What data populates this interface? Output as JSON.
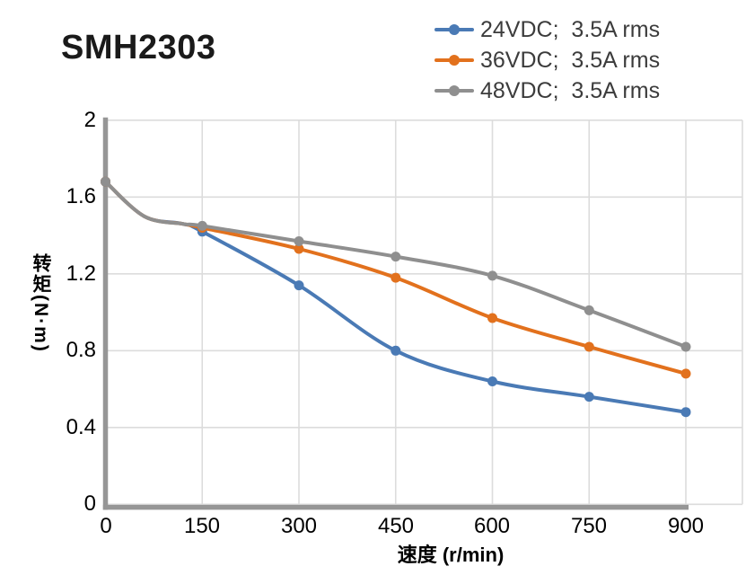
{
  "chart_data": {
    "type": "line",
    "title": "SMH2303",
    "xlabel": "速度 (r/min)",
    "ylabel": "转矩(N·m)",
    "x": [
      0,
      150,
      300,
      450,
      600,
      750,
      900
    ],
    "x_ticks": [
      "0",
      "150",
      "300",
      "450",
      "600",
      "750",
      "900"
    ],
    "y_ticks": [
      "2",
      "1.6",
      "1.2",
      "0.8",
      "0.4",
      "0"
    ],
    "xlim": [
      0,
      988
    ],
    "ylim": [
      0,
      2
    ],
    "grid": true,
    "legend_position": "top-right",
    "series": [
      {
        "name": "24VDC;  3.5A rms",
        "color": "#4a7ab5",
        "values": [
          1.68,
          1.42,
          1.14,
          0.8,
          0.64,
          0.56,
          0.48
        ]
      },
      {
        "name": "36VDC;  3.5A rms",
        "color": "#e2711d",
        "values": [
          1.68,
          1.44,
          1.33,
          1.18,
          0.97,
          0.82,
          0.68
        ]
      },
      {
        "name": "48VDC;  3.5A rms",
        "color": "#8f8f8f",
        "values": [
          1.68,
          1.45,
          1.37,
          1.29,
          1.19,
          1.01,
          0.82
        ]
      }
    ],
    "lead_in": {
      "x": [
        60,
        120
      ],
      "torque": [
        1.5,
        1.46
      ]
    },
    "colors": {
      "grid": "#dcdcdc",
      "axis": "#969696",
      "tick_text": "#000000",
      "legend_text": "#3c3c3c",
      "title_text": "#1a1a1a"
    }
  }
}
